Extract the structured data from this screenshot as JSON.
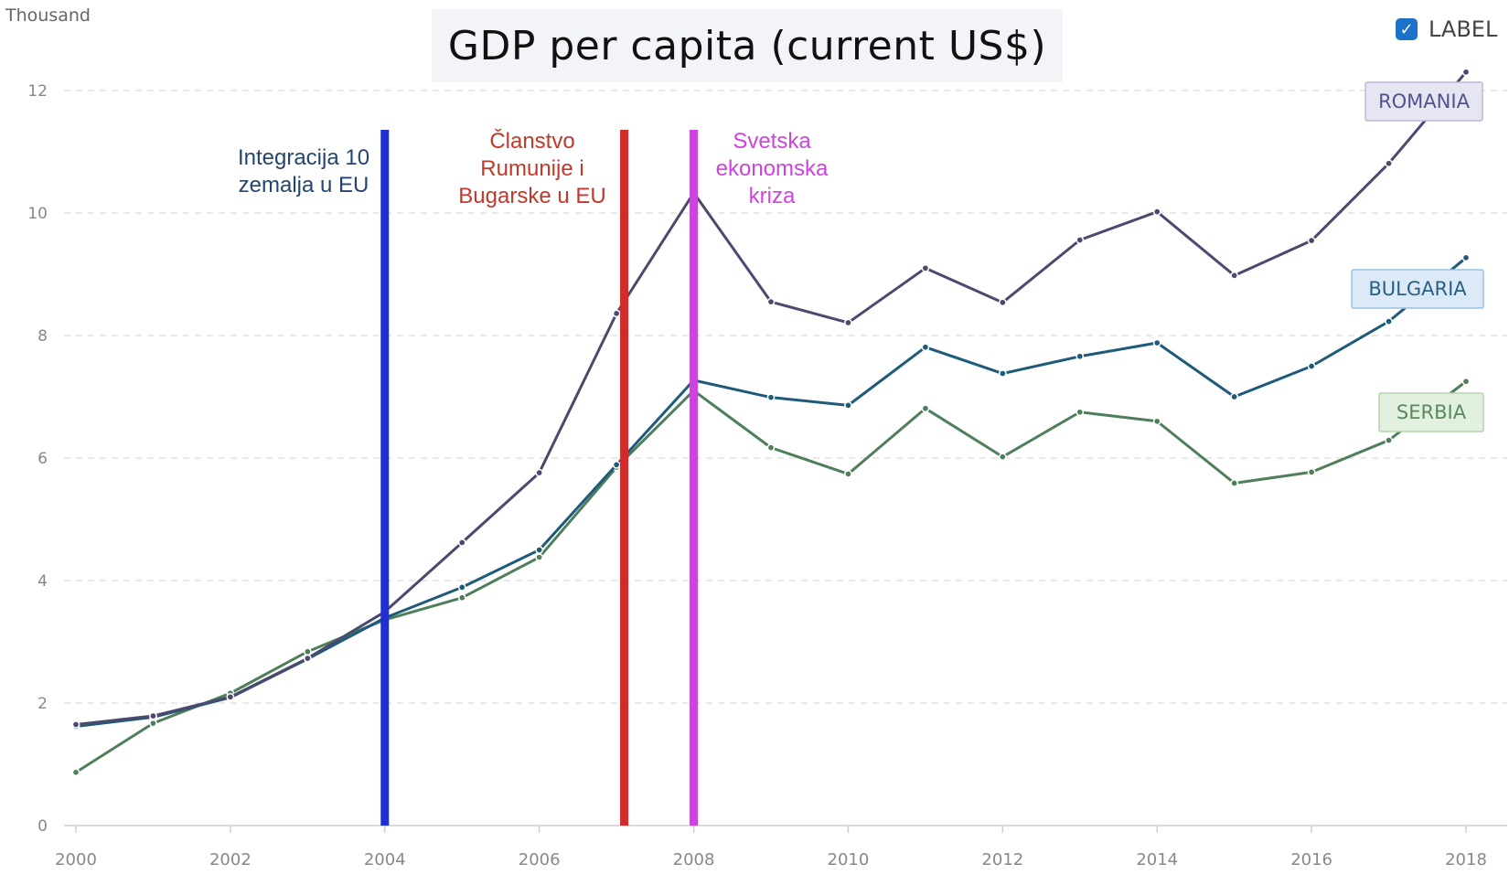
{
  "unit_label": "Thousand",
  "label_toggle": {
    "text": "LABEL",
    "checked": true,
    "check_icon": "checkmark-icon"
  },
  "chart_data": {
    "type": "line",
    "title": "GDP per capita (current US$)",
    "xlabel": "",
    "ylabel": "Thousand",
    "xlim": [
      2000,
      2018
    ],
    "ylim": [
      0,
      12
    ],
    "x_ticks": [
      2000,
      2002,
      2004,
      2006,
      2008,
      2010,
      2012,
      2014,
      2016,
      2018
    ],
    "x_tick_labels": [
      "2000",
      "2002",
      "2004",
      "2006",
      "2008",
      "2010",
      "2012",
      "2014",
      "2016",
      "2018"
    ],
    "y_ticks": [
      0,
      2,
      4,
      6,
      8,
      10,
      12
    ],
    "y_tick_labels": [
      "0",
      "2",
      "4",
      "6",
      "8",
      "10",
      "12"
    ],
    "grid": true,
    "x": [
      2000,
      2001,
      2002,
      2003,
      2004,
      2005,
      2006,
      2007,
      2008,
      2009,
      2010,
      2011,
      2012,
      2013,
      2014,
      2015,
      2016,
      2017,
      2018
    ],
    "series": [
      {
        "name": "ROMANIA",
        "color": "#4a4a6e",
        "label_bg": "#e6e6f2",
        "label_border": "#b9b9d6",
        "label_color": "#4f5490",
        "values": [
          1.65,
          1.79,
          2.1,
          2.73,
          3.49,
          4.62,
          5.76,
          8.36,
          10.33,
          8.55,
          8.21,
          9.1,
          8.54,
          9.56,
          10.02,
          8.98,
          9.55,
          10.81,
          12.3
        ]
      },
      {
        "name": "BULGARIA",
        "color": "#1e5a7a",
        "label_bg": "#dbeaf6",
        "label_border": "#9cc2e0",
        "label_color": "#2a5f85",
        "values": [
          1.62,
          1.77,
          2.09,
          2.72,
          3.39,
          3.89,
          4.5,
          5.89,
          7.27,
          6.99,
          6.86,
          7.81,
          7.38,
          7.66,
          7.88,
          7.0,
          7.5,
          8.23,
          9.27
        ]
      },
      {
        "name": "SERBIA",
        "color": "#4f7f5a",
        "label_bg": "#e2f0df",
        "label_border": "#b5d3ae",
        "label_color": "#5a8a5a",
        "values": [
          0.87,
          1.67,
          2.16,
          2.84,
          3.36,
          3.72,
          4.38,
          5.85,
          7.1,
          6.17,
          5.74,
          6.81,
          6.02,
          6.75,
          6.6,
          5.59,
          5.77,
          6.29,
          7.25
        ]
      }
    ],
    "annotations": [
      {
        "x": 2004,
        "color": "#1f2fd0",
        "text_color": "#24456d",
        "lines": [
          "Integracija 10",
          "zemalja u EU"
        ]
      },
      {
        "x": 2007.1,
        "color": "#d22b2b",
        "text_color": "#c0392b",
        "lines": [
          "Članstvo",
          "Rumunije i",
          "Bugarske u EU"
        ]
      },
      {
        "x": 2008,
        "color": "#cc44dd",
        "text_color": "#cc44dd",
        "lines": [
          "Svetska",
          "ekonomska",
          "kriza"
        ]
      }
    ]
  }
}
